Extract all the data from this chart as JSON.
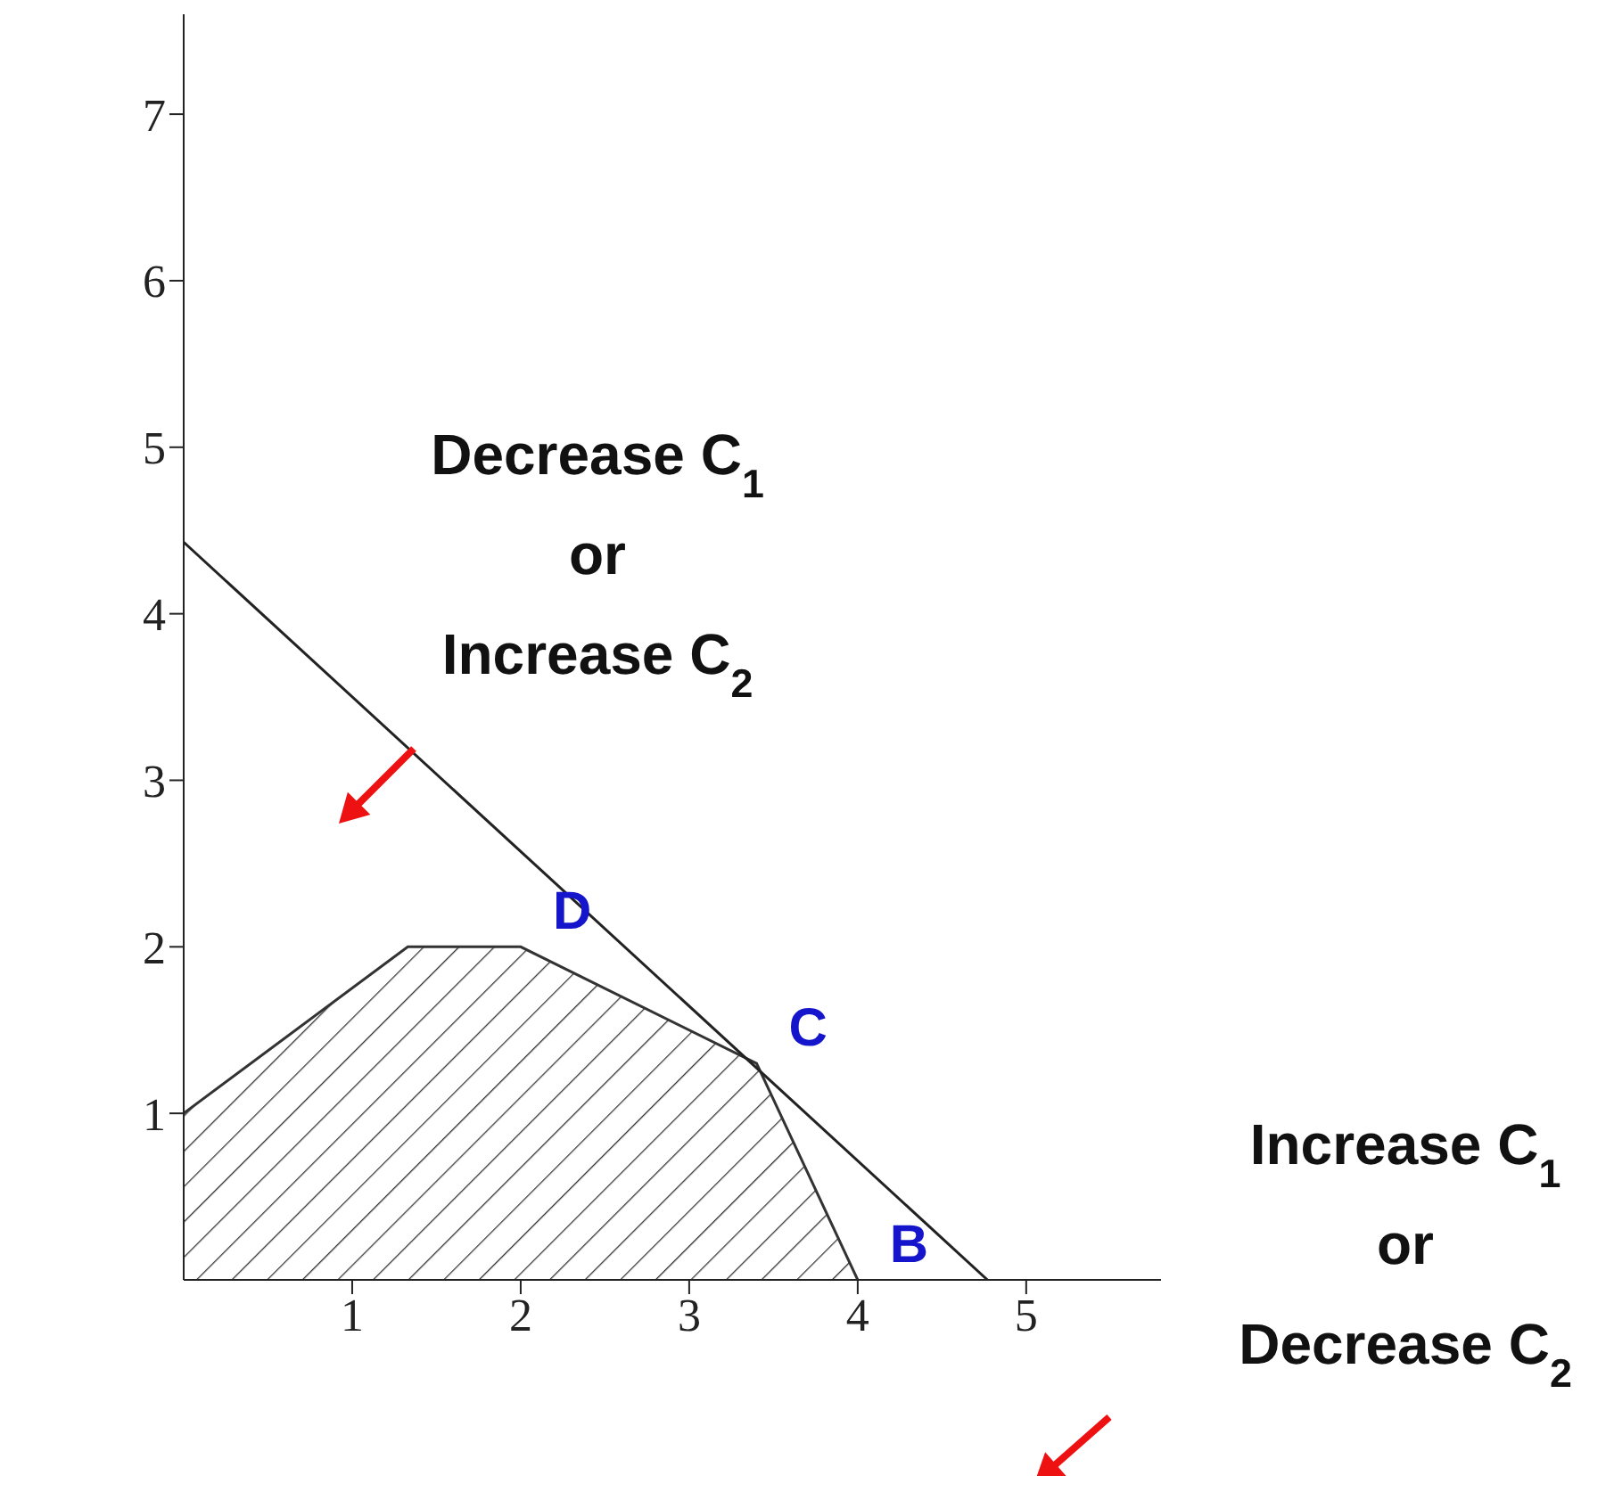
{
  "chart_data": {
    "type": "area",
    "series": [
      {
        "color": "#333333",
        "x": [
          0,
          1.33,
          2,
          3.4,
          4
        ],
        "values": [
          1,
          2,
          2,
          1.3,
          0
        ]
      },
      {
        "type": "line",
        "color": "#222222",
        "x": [
          0,
          4.77
        ],
        "values": [
          4.43,
          0
        ]
      }
    ],
    "xlim": [
      0,
      5.8
    ],
    "ylim": [
      0,
      7.6
    ],
    "xticks": [
      1,
      2,
      3,
      4,
      5
    ],
    "yticks": [
      1,
      2,
      3,
      4,
      5,
      6,
      7
    ],
    "annotations": [
      {
        "text": "D",
        "x": 2,
        "y": 2
      },
      {
        "text": "C",
        "x": 3.4,
        "y": 1.3
      },
      {
        "text": "B",
        "x": 4,
        "y": 0
      },
      "Decrease C$_{1}$\nor\nIncrease C$_{2}$",
      "Increase C$_{1}$\nor\nDecrease C$_{2}$"
    ],
    "grid": false,
    "marker": "none"
  }
}
